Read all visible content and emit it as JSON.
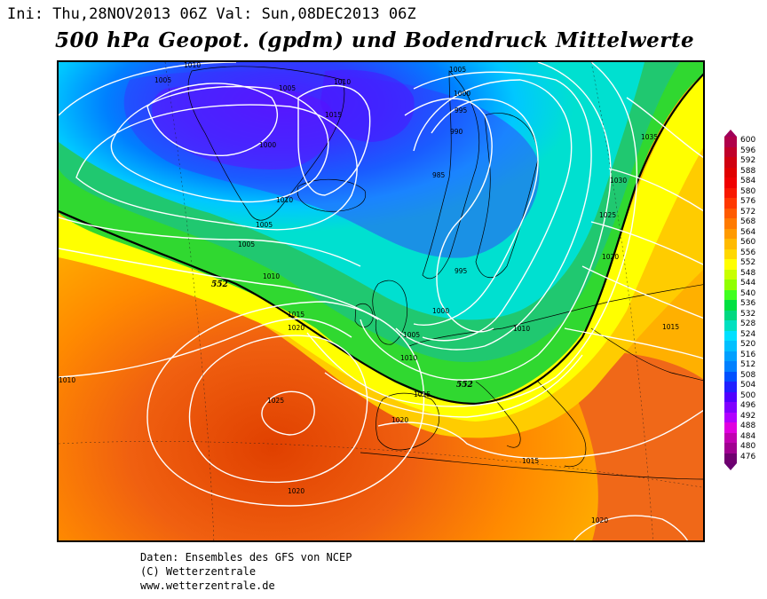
{
  "header": {
    "init_val_line": "Ini: Thu,28NOV2013 06Z Val: Sun,08DEC2013 06Z",
    "title": "500 hPa Geopot. (gpdm) und Bodendruck Mittelwerte"
  },
  "legend": {
    "values": [
      "600",
      "596",
      "592",
      "588",
      "584",
      "580",
      "576",
      "572",
      "568",
      "564",
      "560",
      "556",
      "552",
      "548",
      "544",
      "540",
      "536",
      "532",
      "528",
      "524",
      "520",
      "516",
      "512",
      "508",
      "504",
      "500",
      "496",
      "492",
      "488",
      "484",
      "480",
      "476"
    ],
    "colors": [
      "#b0004a",
      "#c0002a",
      "#d00010",
      "#e00000",
      "#f00000",
      "#f81800",
      "#ff3800",
      "#ff5a00",
      "#ff7a00",
      "#ff9a00",
      "#ffba00",
      "#ffd800",
      "#ffff00",
      "#c8ff00",
      "#90ff00",
      "#40ff20",
      "#00e040",
      "#00d880",
      "#00e0c0",
      "#00e0ff",
      "#00c0ff",
      "#00a0ff",
      "#0080ff",
      "#0050ff",
      "#2020ff",
      "#5000ff",
      "#8000ff",
      "#b000ff",
      "#e000e0",
      "#c000b0",
      "#a00090",
      "#700070"
    ]
  },
  "map": {
    "isobar_labels": [
      "1010",
      "1005",
      "1005",
      "1010",
      "1015",
      "1000",
      "1010",
      "1005",
      "1005",
      "1010",
      "1005",
      "1000",
      "995",
      "990",
      "985",
      "995",
      "1000",
      "1005",
      "1010",
      "1015",
      "1010",
      "1020",
      "1025",
      "1020",
      "1015",
      "1020",
      "1015",
      "1035",
      "1030",
      "1025",
      "1020",
      "1015",
      "1010",
      "1020"
    ],
    "contour_552_label": "552"
  },
  "credits": {
    "line1": "Daten: Ensembles des GFS von NCEP",
    "line2": "(C) Wetterzentrale",
    "line3": "www.wetterzentrale.de"
  }
}
